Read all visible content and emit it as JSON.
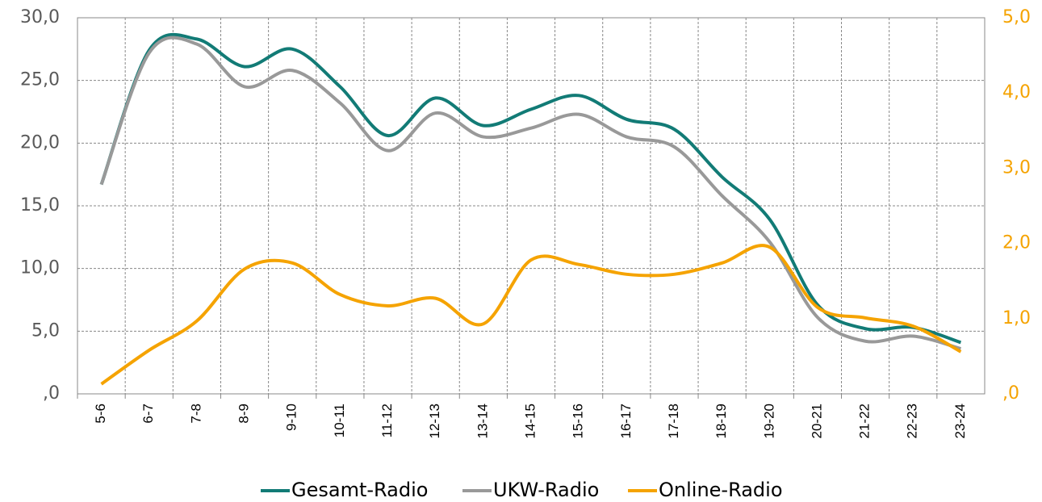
{
  "chart_data": {
    "type": "line",
    "categories": [
      "5-6",
      "6-7",
      "7-8",
      "8-9",
      "9-10",
      "10-11",
      "11-12",
      "12-13",
      "13-14",
      "14-15",
      "15-16",
      "16-17",
      "17-18",
      "18-19",
      "19-20",
      "20-21",
      "21-22",
      "22-23",
      "23-24"
    ],
    "series": [
      {
        "name": "Gesamt-Radio",
        "color": "#127b76",
        "values": [
          16.7,
          27.4,
          28.3,
          26.1,
          27.5,
          24.5,
          20.6,
          23.6,
          21.4,
          22.7,
          23.8,
          21.9,
          21.1,
          17.3,
          13.9,
          7.1,
          5.2,
          5.3,
          4.1
        ]
      },
      {
        "name": "UKW-Radio",
        "color": "#999999",
        "values": [
          16.7,
          27.2,
          27.9,
          24.5,
          25.8,
          23.2,
          19.4,
          22.4,
          20.5,
          21.2,
          22.3,
          20.5,
          19.7,
          15.8,
          12.1,
          6.1,
          4.2,
          4.6,
          3.6
        ]
      },
      {
        "name": "Online-Radio",
        "color": "#f5a300",
        "axis": "y2",
        "values": [
          0.13,
          0.58,
          0.97,
          1.66,
          1.74,
          1.32,
          1.17,
          1.27,
          0.93,
          1.78,
          1.72,
          1.59,
          1.59,
          1.74,
          1.95,
          1.15,
          1.01,
          0.9,
          0.56
        ]
      }
    ],
    "ylim": [
      0,
      30
    ],
    "yticks": [
      {
        "value": 0,
        "label": ",0"
      },
      {
        "value": 5,
        "label": "5,0"
      },
      {
        "value": 10,
        "label": "10,0"
      },
      {
        "value": 15,
        "label": "15,0"
      },
      {
        "value": 20,
        "label": "20,0"
      },
      {
        "value": 25,
        "label": "25,0"
      },
      {
        "value": 30,
        "label": "30,0"
      }
    ],
    "y2lim": [
      0,
      5
    ],
    "y2ticks": [
      {
        "value": 0,
        "label": ",0"
      },
      {
        "value": 1,
        "label": "1,0"
      },
      {
        "value": 2,
        "label": "2,0"
      },
      {
        "value": 3,
        "label": "3,0"
      },
      {
        "value": 4,
        "label": "4,0"
      },
      {
        "value": 5,
        "label": "5,0"
      }
    ],
    "grid": true,
    "legend": "bottom"
  }
}
